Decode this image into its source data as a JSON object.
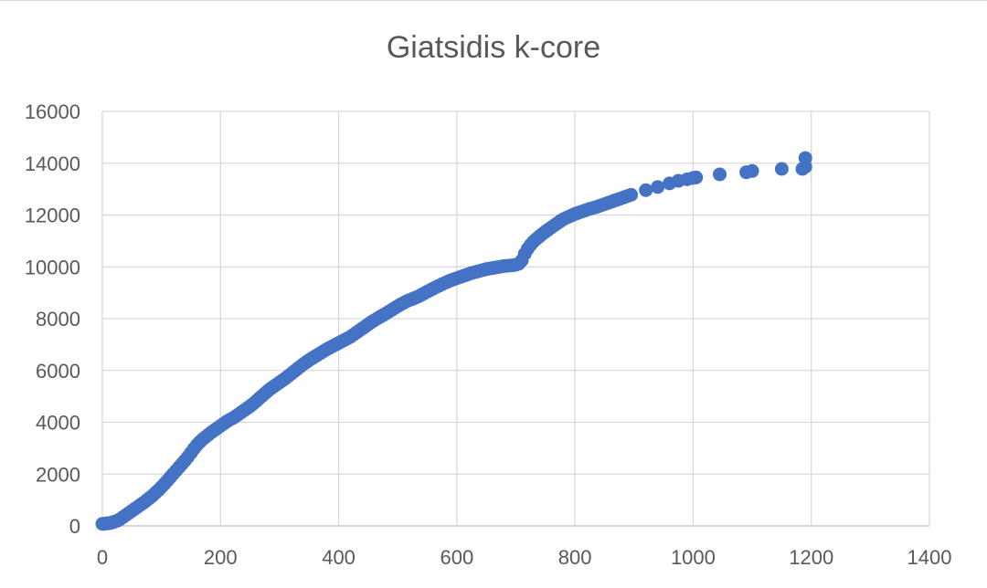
{
  "chart_data": {
    "type": "scatter",
    "title": "Giatsidis k-core",
    "xlabel": "",
    "ylabel": "",
    "xlim": [
      0,
      1400
    ],
    "ylim": [
      0,
      16000
    ],
    "x_ticks": [
      "0",
      "200",
      "400",
      "600",
      "800",
      "1000",
      "1200",
      "1400"
    ],
    "y_ticks": [
      "0",
      "2000",
      "4000",
      "6000",
      "8000",
      "10000",
      "12000",
      "14000",
      "16000"
    ],
    "grid": true,
    "legend": "none",
    "color": "#4472c4",
    "series": [
      {
        "points": [
          [
            0,
            80
          ],
          [
            3,
            80
          ],
          [
            5,
            90
          ],
          [
            8,
            100
          ],
          [
            10,
            100
          ],
          [
            13,
            110
          ],
          [
            15,
            120
          ],
          [
            18,
            140
          ],
          [
            20,
            160
          ],
          [
            25,
            200
          ],
          [
            30,
            260
          ],
          [
            35,
            340
          ],
          [
            40,
            420
          ],
          [
            45,
            500
          ],
          [
            50,
            580
          ],
          [
            55,
            660
          ],
          [
            60,
            740
          ],
          [
            65,
            820
          ],
          [
            70,
            900
          ],
          [
            75,
            990
          ],
          [
            80,
            1080
          ],
          [
            85,
            1170
          ],
          [
            90,
            1280
          ],
          [
            95,
            1380
          ],
          [
            100,
            1500
          ],
          [
            105,
            1620
          ],
          [
            110,
            1750
          ],
          [
            115,
            1880
          ],
          [
            120,
            2010
          ],
          [
            125,
            2140
          ],
          [
            130,
            2270
          ],
          [
            135,
            2400
          ],
          [
            140,
            2530
          ],
          [
            145,
            2670
          ],
          [
            150,
            2820
          ],
          [
            155,
            2980
          ],
          [
            160,
            3120
          ],
          [
            165,
            3240
          ],
          [
            170,
            3350
          ],
          [
            175,
            3440
          ],
          [
            180,
            3530
          ],
          [
            185,
            3620
          ],
          [
            190,
            3700
          ],
          [
            195,
            3780
          ],
          [
            200,
            3860
          ],
          [
            205,
            3940
          ],
          [
            210,
            4020
          ],
          [
            215,
            4090
          ],
          [
            220,
            4150
          ],
          [
            225,
            4220
          ],
          [
            230,
            4300
          ],
          [
            235,
            4380
          ],
          [
            240,
            4460
          ],
          [
            245,
            4540
          ],
          [
            250,
            4620
          ],
          [
            255,
            4710
          ],
          [
            260,
            4810
          ],
          [
            265,
            4910
          ],
          [
            270,
            5010
          ],
          [
            275,
            5110
          ],
          [
            280,
            5210
          ],
          [
            285,
            5300
          ],
          [
            290,
            5380
          ],
          [
            295,
            5460
          ],
          [
            300,
            5540
          ],
          [
            305,
            5620
          ],
          [
            310,
            5700
          ],
          [
            315,
            5790
          ],
          [
            320,
            5880
          ],
          [
            325,
            5970
          ],
          [
            330,
            6060
          ],
          [
            335,
            6150
          ],
          [
            340,
            6240
          ],
          [
            345,
            6320
          ],
          [
            350,
            6400
          ],
          [
            355,
            6470
          ],
          [
            360,
            6540
          ],
          [
            365,
            6610
          ],
          [
            370,
            6680
          ],
          [
            375,
            6750
          ],
          [
            380,
            6820
          ],
          [
            385,
            6880
          ],
          [
            390,
            6940
          ],
          [
            395,
            7000
          ],
          [
            400,
            7060
          ],
          [
            405,
            7120
          ],
          [
            410,
            7180
          ],
          [
            415,
            7240
          ],
          [
            420,
            7300
          ],
          [
            425,
            7380
          ],
          [
            430,
            7460
          ],
          [
            435,
            7540
          ],
          [
            440,
            7620
          ],
          [
            445,
            7700
          ],
          [
            450,
            7780
          ],
          [
            455,
            7860
          ],
          [
            460,
            7930
          ],
          [
            465,
            8000
          ],
          [
            470,
            8070
          ],
          [
            475,
            8130
          ],
          [
            480,
            8200
          ],
          [
            485,
            8270
          ],
          [
            490,
            8340
          ],
          [
            495,
            8410
          ],
          [
            500,
            8480
          ],
          [
            505,
            8550
          ],
          [
            510,
            8610
          ],
          [
            515,
            8670
          ],
          [
            520,
            8720
          ],
          [
            525,
            8760
          ],
          [
            530,
            8810
          ],
          [
            535,
            8860
          ],
          [
            540,
            8920
          ],
          [
            545,
            8980
          ],
          [
            550,
            9040
          ],
          [
            555,
            9100
          ],
          [
            560,
            9160
          ],
          [
            565,
            9220
          ],
          [
            570,
            9270
          ],
          [
            575,
            9330
          ],
          [
            580,
            9380
          ],
          [
            585,
            9430
          ],
          [
            590,
            9480
          ],
          [
            595,
            9520
          ],
          [
            600,
            9560
          ],
          [
            605,
            9600
          ],
          [
            610,
            9640
          ],
          [
            615,
            9680
          ],
          [
            620,
            9720
          ],
          [
            625,
            9760
          ],
          [
            630,
            9790
          ],
          [
            635,
            9820
          ],
          [
            640,
            9850
          ],
          [
            645,
            9880
          ],
          [
            650,
            9910
          ],
          [
            655,
            9930
          ],
          [
            660,
            9950
          ],
          [
            665,
            9970
          ],
          [
            670,
            9990
          ],
          [
            675,
            10010
          ],
          [
            680,
            10030
          ],
          [
            685,
            10040
          ],
          [
            690,
            10050
          ],
          [
            695,
            10060
          ],
          [
            700,
            10080
          ],
          [
            705,
            10120
          ],
          [
            710,
            10250
          ],
          [
            715,
            10500
          ],
          [
            720,
            10700
          ],
          [
            725,
            10850
          ],
          [
            730,
            10980
          ],
          [
            735,
            11080
          ],
          [
            740,
            11180
          ],
          [
            745,
            11270
          ],
          [
            750,
            11360
          ],
          [
            755,
            11440
          ],
          [
            760,
            11520
          ],
          [
            765,
            11600
          ],
          [
            770,
            11680
          ],
          [
            775,
            11760
          ],
          [
            780,
            11830
          ],
          [
            785,
            11890
          ],
          [
            790,
            11940
          ],
          [
            795,
            11990
          ],
          [
            800,
            12040
          ],
          [
            805,
            12080
          ],
          [
            810,
            12120
          ],
          [
            815,
            12160
          ],
          [
            820,
            12200
          ],
          [
            825,
            12240
          ],
          [
            830,
            12270
          ],
          [
            835,
            12300
          ],
          [
            840,
            12340
          ],
          [
            845,
            12380
          ],
          [
            850,
            12420
          ],
          [
            855,
            12460
          ],
          [
            860,
            12500
          ],
          [
            865,
            12540
          ],
          [
            870,
            12580
          ],
          [
            875,
            12620
          ],
          [
            880,
            12660
          ],
          [
            885,
            12700
          ],
          [
            890,
            12740
          ],
          [
            895,
            12780
          ],
          [
            920,
            12960
          ],
          [
            940,
            13080
          ],
          [
            960,
            13220
          ],
          [
            975,
            13320
          ],
          [
            990,
            13380
          ],
          [
            1000,
            13430
          ],
          [
            1005,
            13450
          ],
          [
            1045,
            13570
          ],
          [
            1090,
            13650
          ],
          [
            1100,
            13700
          ],
          [
            1150,
            13780
          ],
          [
            1185,
            13780
          ],
          [
            1190,
            13860
          ],
          [
            1190,
            14200
          ]
        ]
      }
    ]
  }
}
